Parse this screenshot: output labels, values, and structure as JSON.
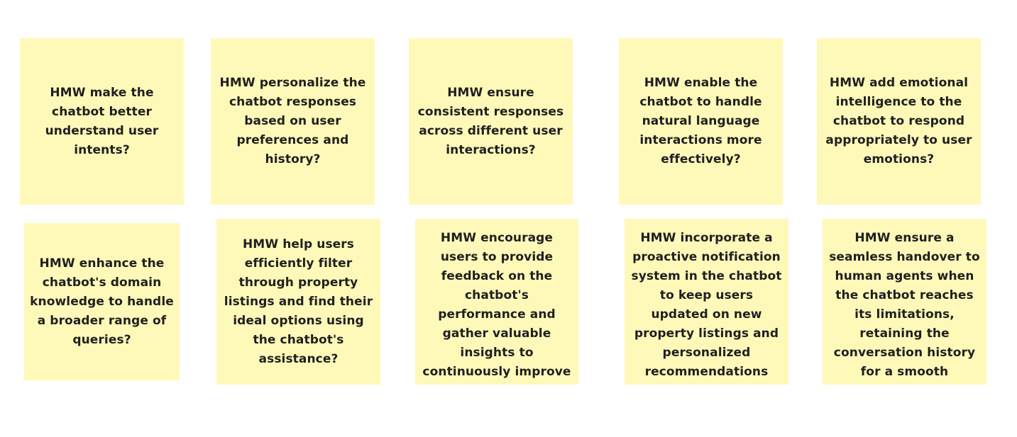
{
  "board": {
    "notes": [
      {
        "text": "HMW make the chatbot better understand user intents?"
      },
      {
        "text": "HMW personalize the chatbot responses based on user preferences and history?"
      },
      {
        "text": "HMW ensure consistent responses across different user interactions?"
      },
      {
        "text": "HMW enable the chatbot to handle natural language interactions more effectively?"
      },
      {
        "text": "HMW add emotional intelligence to the chatbot to respond appropriately to user emotions?"
      },
      {
        "text": "HMW enhance the chatbot's domain knowledge to handle a broader range of queries?"
      },
      {
        "text": "HMW help users efficiently filter through property listings and find their ideal options using the chatbot's assistance?"
      },
      {
        "text": "HMW encourage users to provide feedback on the chatbot's performance and gather valuable insights to continuously improve"
      },
      {
        "text": "HMW incorporate a proactive notification system in the chatbot to keep users updated on new property listings and personalized recommendations"
      },
      {
        "text": "HMW ensure a seamless handover to human agents when the chatbot reaches its limitations, retaining the conversation history for a smooth"
      }
    ],
    "note_color": "#fff9b9",
    "text_color": "#1f1f1f"
  }
}
